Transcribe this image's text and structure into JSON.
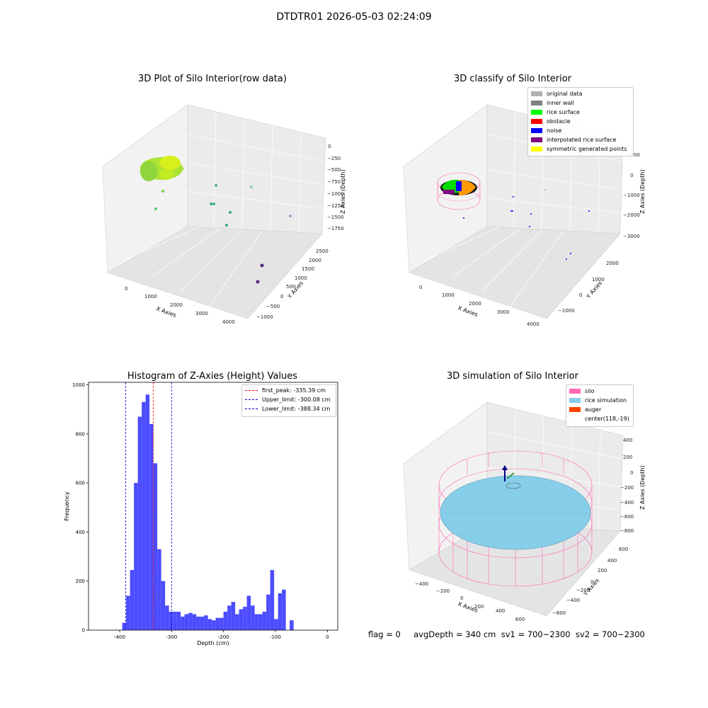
{
  "page": {
    "title": "DTDTR01 2026-05-03 02:24:09"
  },
  "panels": {
    "raw": {
      "title": "3D Plot of Silo Interior(row data)",
      "xlabel": "X Axies",
      "ylabel": "Y Axies",
      "zlabel": "Z Axies (Depth)",
      "x_ticks": [
        "0",
        "1000",
        "2000",
        "3000",
        "4000"
      ],
      "y_ticks": [
        "−1000",
        "−500",
        "0",
        "500",
        "1000",
        "1500",
        "2000",
        "2500"
      ],
      "z_ticks": [
        "0",
        "−250",
        "−500",
        "−750",
        "−1000",
        "−1250",
        "−1500",
        "−1750"
      ]
    },
    "classify": {
      "title": "3D classify of Silo Interior",
      "xlabel": "X Axies",
      "ylabel": "Y Axies",
      "zlabel": "Z Axies (Depth)",
      "x_ticks": [
        "0",
        "1000",
        "2000",
        "3000",
        "4000"
      ],
      "y_ticks": [
        "−1000",
        "0",
        "1000",
        "2000"
      ],
      "z_ticks": [
        "1000",
        "0",
        "−1000",
        "−2000",
        "−3000"
      ],
      "legend": [
        {
          "label": "original data",
          "color": "#b0b0b0"
        },
        {
          "label": "inner wall",
          "color": "#808080"
        },
        {
          "label": "rice surface",
          "color": "#00ff00"
        },
        {
          "label": "obstacle",
          "color": "#ff0000"
        },
        {
          "label": "noise",
          "color": "#0000ff"
        },
        {
          "label": "interpolated rice surface",
          "color": "#800080"
        },
        {
          "label": "symmetric generated points",
          "color": "#ffff00"
        }
      ]
    },
    "simulation": {
      "title": "3D simulation of Silo Interior",
      "xlabel": "X Axies",
      "ylabel": "Y Axies",
      "zlabel": "Z Axies (Depth)",
      "x_ticks": [
        "−400",
        "−200",
        "0",
        "200",
        "400",
        "600"
      ],
      "y_ticks": [
        "−600",
        "−400",
        "−200",
        "0",
        "200",
        "400",
        "600"
      ],
      "z_ticks": [
        "400",
        "200",
        "0",
        "−200",
        "−400",
        "−600",
        "−800"
      ],
      "legend": [
        {
          "label": "silo",
          "color": "#ff69b4"
        },
        {
          "label": "rice simulation",
          "color": "#87ceeb"
        },
        {
          "label": "auger",
          "color": "#ff4500"
        },
        {
          "label": "center(118,-19)",
          "color": ""
        }
      ],
      "footer": "flag = 0     avgDepth = 340 cm  sv1 = 700~2300  sv2 = 700~2300"
    }
  },
  "chart_data": {
    "type": "bar",
    "title": "Histogram of Z-Axies (Height) Values",
    "xlabel": "Depth (cm)",
    "ylabel": "Frequency",
    "xlim": [
      -460,
      20
    ],
    "ylim": [
      0,
      1010
    ],
    "x_ticks": [
      -400,
      -300,
      -200,
      -100,
      0
    ],
    "y_ticks": [
      0,
      200,
      400,
      600,
      800,
      1000
    ],
    "bin_width": 7.5,
    "series": [
      {
        "color": "#4c4cff",
        "bin_starts": [
          -395,
          -387.5,
          -380,
          -372.5,
          -365,
          -357.5,
          -350,
          -342.5,
          -335,
          -327.5,
          -320,
          -312.5,
          -305,
          -297.5,
          -290,
          -282.5,
          -275,
          -267.5,
          -260,
          -252.5,
          -245,
          -237.5,
          -230,
          -222.5,
          -215,
          -207.5,
          -200,
          -192.5,
          -185,
          -177.5,
          -170,
          -162.5,
          -155,
          -147.5,
          -140,
          -132.5,
          -125,
          -117.5,
          -110,
          -102.5,
          -95,
          -87.5,
          -80,
          -72.5,
          -65,
          -57.5,
          -50,
          -42.5,
          -35,
          -27.5,
          -20,
          -12.5,
          -5
        ],
        "values": [
          30,
          140,
          245,
          600,
          870,
          930,
          960,
          840,
          680,
          330,
          200,
          100,
          75,
          75,
          75,
          55,
          65,
          70,
          65,
          55,
          55,
          60,
          45,
          40,
          50,
          50,
          75,
          100,
          115,
          65,
          85,
          95,
          140,
          100,
          65,
          65,
          75,
          145,
          245,
          45,
          150,
          165,
          0,
          40,
          0,
          0,
          0,
          0,
          0,
          0,
          0,
          0,
          0
        ]
      }
    ],
    "vlines": [
      {
        "label": "first_peak: -335.39 cm",
        "x": -335.39,
        "color": "#ff0000"
      },
      {
        "label": "Upper_limit: -300.08 cm",
        "x": -300.08,
        "color": "#0000cc"
      },
      {
        "label": "Lower_limit: -388.34 cm",
        "x": -388.34,
        "color": "#0000cc"
      }
    ]
  }
}
